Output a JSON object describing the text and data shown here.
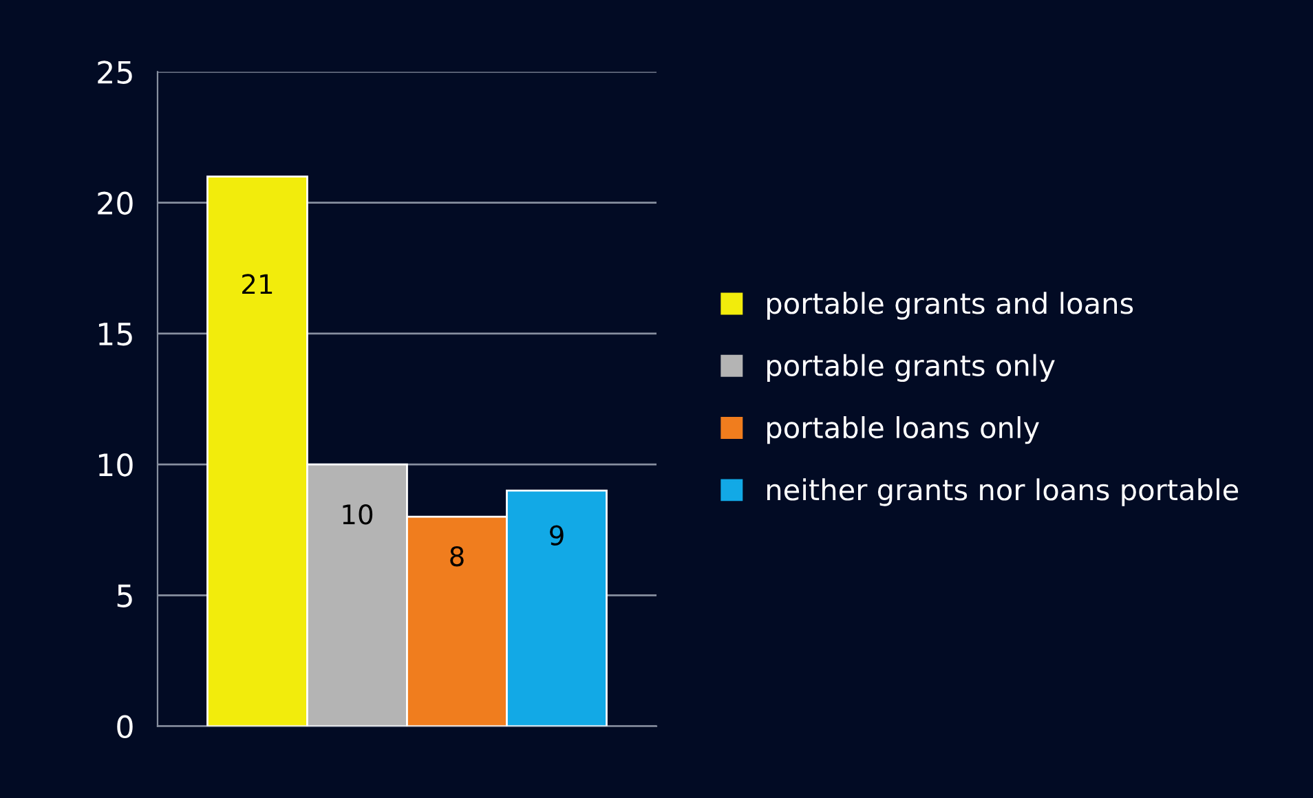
{
  "chart_data": {
    "type": "bar",
    "categories": [
      null
    ],
    "series": [
      {
        "name": "portable grants and loans",
        "color": "#f2ec0c",
        "values": [
          21
        ]
      },
      {
        "name": "portable grants only",
        "color": "#b4b4b4",
        "values": [
          10
        ]
      },
      {
        "name": "portable loans only",
        "color": "#f07d1e",
        "values": [
          8
        ]
      },
      {
        "name": "neither grants nor loans portable",
        "color": "#12a9e6",
        "values": [
          9
        ]
      }
    ],
    "ylim": [
      0,
      25
    ],
    "yticks": [
      0,
      5,
      10,
      15,
      20,
      25
    ],
    "grid": "y",
    "legend": "right",
    "data_labels": true
  }
}
